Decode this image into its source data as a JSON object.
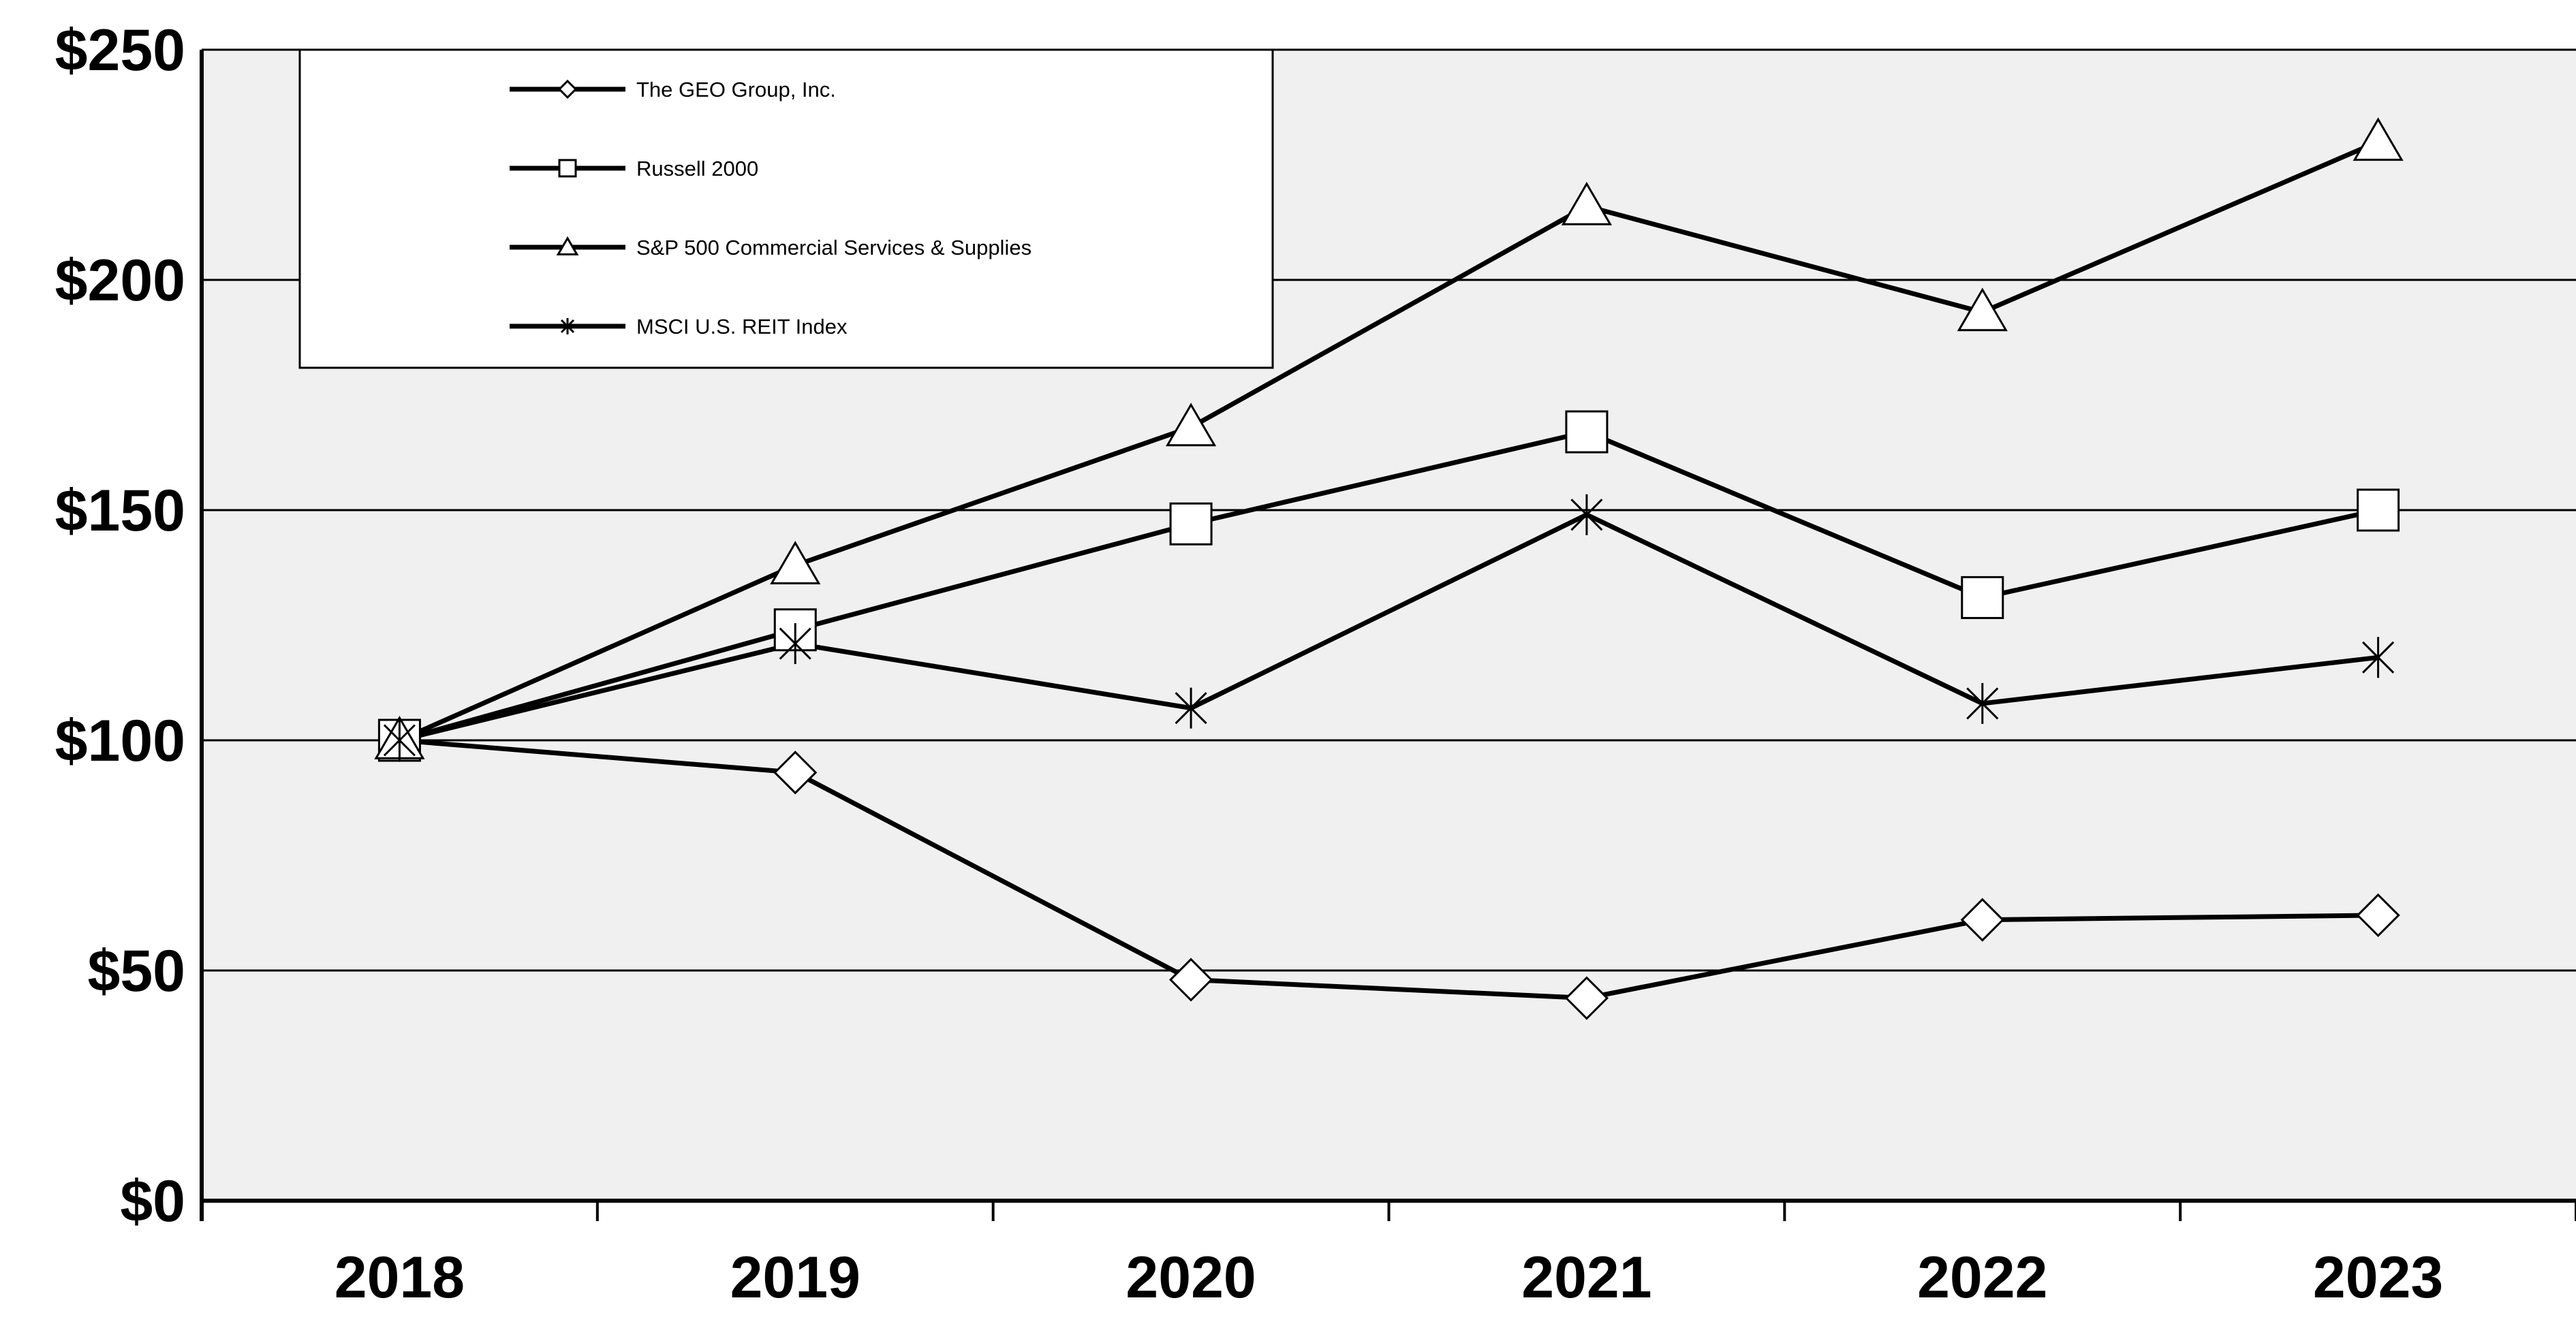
{
  "chart_data": {
    "type": "line",
    "title": "",
    "xlabel": "",
    "ylabel": "",
    "categories": [
      "2018",
      "2019",
      "2020",
      "2021",
      "2022",
      "2023"
    ],
    "ylim": [
      0,
      250
    ],
    "y_ticks": [
      0,
      50,
      100,
      150,
      200,
      250
    ],
    "y_tick_labels": [
      "$0",
      "$50",
      "$100",
      "$150",
      "$200",
      "$250"
    ],
    "grid": true,
    "legend_position": "top-left",
    "plot_background": "#f0f0f0",
    "line_color": "#000000",
    "series": [
      {
        "name": "The GEO Group, Inc.",
        "marker": "diamond",
        "values": [
          100,
          93,
          48,
          44,
          61,
          62
        ]
      },
      {
        "name": "Russell 2000",
        "marker": "square",
        "values": [
          100,
          124,
          147,
          167,
          131,
          150
        ]
      },
      {
        "name": "S&P 500 Commercial Services & Supplies",
        "marker": "triangle",
        "values": [
          100,
          138,
          168,
          216,
          193,
          230
        ]
      },
      {
        "name": "MSCI U.S. REIT Index",
        "marker": "asterisk",
        "values": [
          100,
          121,
          107,
          149,
          108,
          118
        ]
      }
    ]
  }
}
